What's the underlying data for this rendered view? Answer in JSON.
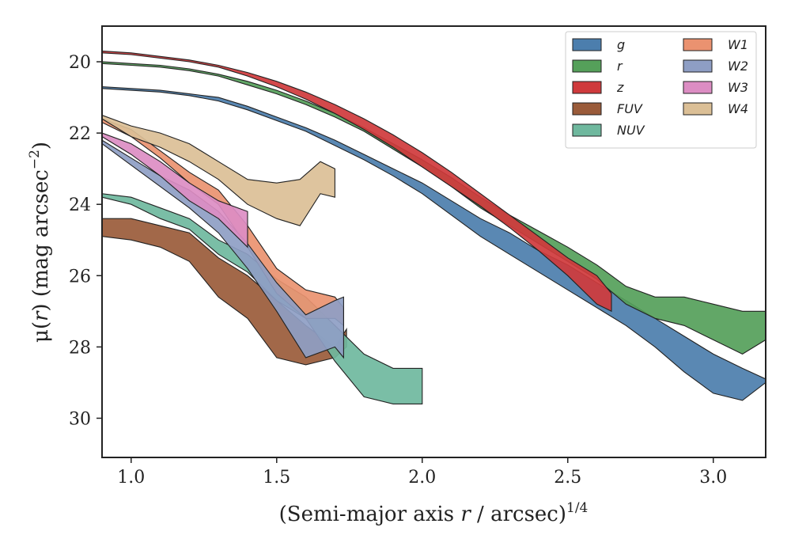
{
  "chart_data": {
    "type": "area",
    "xlabel_main": "(Semi-major axis ",
    "xlabel_var": "r",
    "xlabel_rest": " / arcsec)",
    "xlabel_sup": "1/4",
    "ylabel_main": "μ(",
    "ylabel_var": "r",
    "ylabel_rest": ") (mag arcsec",
    "ylabel_sup": "−2",
    "ylabel_close": ")",
    "xlim": [
      0.9,
      3.18
    ],
    "ylim": [
      31.1,
      19.0
    ],
    "y_inverted": true,
    "x_ticks": [
      "1.0",
      "1.5",
      "2.0",
      "2.5",
      "3.0"
    ],
    "y_ticks": [
      "20",
      "22",
      "24",
      "26",
      "28",
      "30"
    ],
    "legend_position": "top-right",
    "series": [
      {
        "name": "g",
        "color": "#4c7ead",
        "x": [
          0.9,
          1.0,
          1.1,
          1.2,
          1.3,
          1.4,
          1.5,
          1.6,
          1.7,
          1.8,
          1.9,
          2.0,
          2.1,
          2.2,
          2.3,
          2.4,
          2.5,
          2.6,
          2.7,
          2.8,
          2.9,
          3.0,
          3.1,
          3.18
        ],
        "lower": [
          20.7,
          20.75,
          20.8,
          20.9,
          21.0,
          21.25,
          21.55,
          21.85,
          22.2,
          22.6,
          23.0,
          23.4,
          23.9,
          24.4,
          24.8,
          25.3,
          25.7,
          26.2,
          26.7,
          27.2,
          27.7,
          28.2,
          28.6,
          28.9
        ],
        "upper": [
          20.75,
          20.8,
          20.85,
          20.95,
          21.1,
          21.35,
          21.65,
          21.95,
          22.35,
          22.75,
          23.2,
          23.7,
          24.3,
          24.9,
          25.4,
          25.9,
          26.4,
          26.9,
          27.4,
          28.0,
          28.7,
          29.3,
          29.5,
          29.0
        ]
      },
      {
        "name": "r",
        "color": "#55a05a",
        "x": [
          0.9,
          1.0,
          1.1,
          1.2,
          1.3,
          1.4,
          1.5,
          1.6,
          1.7,
          1.8,
          1.9,
          2.0,
          2.1,
          2.2,
          2.3,
          2.4,
          2.5,
          2.6,
          2.7,
          2.8,
          2.9,
          3.0,
          3.1,
          3.18
        ],
        "lower": [
          20.0,
          20.05,
          20.1,
          20.2,
          20.35,
          20.55,
          20.8,
          21.1,
          21.45,
          21.85,
          22.3,
          22.75,
          23.25,
          23.8,
          24.3,
          24.75,
          25.2,
          25.7,
          26.3,
          26.6,
          26.6,
          26.8,
          27.0,
          27.0
        ],
        "upper": [
          20.05,
          20.1,
          20.15,
          20.25,
          20.4,
          20.65,
          20.9,
          21.2,
          21.55,
          21.95,
          22.45,
          22.95,
          23.5,
          24.1,
          24.6,
          25.1,
          25.6,
          26.1,
          26.8,
          27.2,
          27.4,
          27.8,
          28.2,
          27.8
        ]
      },
      {
        "name": "z",
        "color": "#cf3a3c",
        "x": [
          0.9,
          1.0,
          1.1,
          1.2,
          1.3,
          1.4,
          1.5,
          1.6,
          1.7,
          1.8,
          1.9,
          2.0,
          2.1,
          2.2,
          2.3,
          2.4,
          2.5,
          2.6,
          2.65
        ],
        "lower": [
          19.7,
          19.75,
          19.85,
          19.95,
          20.1,
          20.3,
          20.55,
          20.85,
          21.2,
          21.6,
          22.05,
          22.55,
          23.1,
          23.7,
          24.3,
          24.9,
          25.5,
          26.0,
          26.5
        ],
        "upper": [
          19.75,
          19.8,
          19.9,
          20.0,
          20.15,
          20.4,
          20.7,
          21.05,
          21.45,
          21.9,
          22.4,
          22.95,
          23.5,
          24.05,
          24.65,
          25.3,
          26.0,
          26.8,
          27.0
        ]
      },
      {
        "name": "FUV",
        "color": "#9a5b3a",
        "x": [
          0.9,
          1.0,
          1.1,
          1.2,
          1.3,
          1.4,
          1.5,
          1.6,
          1.7,
          1.74
        ],
        "lower": [
          24.4,
          24.4,
          24.6,
          24.8,
          25.5,
          26.0,
          26.7,
          27.4,
          28.0,
          27.5
        ],
        "upper": [
          24.9,
          25.0,
          25.2,
          25.6,
          26.6,
          27.2,
          28.3,
          28.5,
          28.3,
          28.0
        ]
      },
      {
        "name": "NUV",
        "color": "#6fb89e",
        "x": [
          0.9,
          1.0,
          1.1,
          1.2,
          1.3,
          1.4,
          1.5,
          1.6,
          1.7,
          1.8,
          1.9,
          2.0
        ],
        "lower": [
          23.7,
          23.8,
          24.1,
          24.4,
          25.0,
          25.4,
          26.1,
          26.6,
          27.4,
          28.2,
          28.6,
          28.6
        ],
        "upper": [
          23.8,
          24.0,
          24.4,
          24.7,
          25.4,
          25.9,
          26.7,
          27.2,
          28.4,
          29.4,
          29.6,
          29.6
        ]
      },
      {
        "name": "W1",
        "color": "#ea9270",
        "x": [
          0.9,
          1.0,
          1.1,
          1.2,
          1.3,
          1.4,
          1.5,
          1.6,
          1.7,
          1.73
        ],
        "lower": [
          21.6,
          21.9,
          22.5,
          23.1,
          23.6,
          24.6,
          25.8,
          26.4,
          26.6,
          26.9
        ],
        "upper": [
          21.7,
          22.1,
          22.7,
          23.4,
          24.0,
          25.2,
          26.5,
          27.2,
          27.2,
          27.4
        ]
      },
      {
        "name": "W2",
        "color": "#8e9ec4",
        "x": [
          0.9,
          1.0,
          1.1,
          1.2,
          1.3,
          1.4,
          1.5,
          1.6,
          1.7,
          1.73
        ],
        "lower": [
          22.2,
          22.7,
          23.2,
          23.6,
          24.2,
          25.1,
          26.2,
          27.1,
          26.7,
          26.6
        ],
        "upper": [
          22.3,
          22.9,
          23.5,
          24.1,
          24.8,
          25.8,
          27.0,
          28.3,
          28.0,
          28.3
        ]
      },
      {
        "name": "W3",
        "color": "#dc8dc3",
        "x": [
          0.9,
          1.0,
          1.1,
          1.2,
          1.3,
          1.4
        ],
        "lower": [
          22.0,
          22.3,
          22.8,
          23.4,
          23.9,
          24.2
        ],
        "upper": [
          22.1,
          22.6,
          23.2,
          23.9,
          24.4,
          25.2
        ]
      },
      {
        "name": "W4",
        "color": "#dbbf96",
        "x": [
          0.9,
          1.0,
          1.1,
          1.2,
          1.3,
          1.4,
          1.5,
          1.58,
          1.65,
          1.7
        ],
        "lower": [
          21.5,
          21.8,
          22.0,
          22.3,
          22.8,
          23.3,
          23.4,
          23.3,
          22.8,
          23.0
        ],
        "upper": [
          21.6,
          22.1,
          22.4,
          22.8,
          23.3,
          24.0,
          24.4,
          24.6,
          23.7,
          23.8
        ]
      }
    ]
  }
}
